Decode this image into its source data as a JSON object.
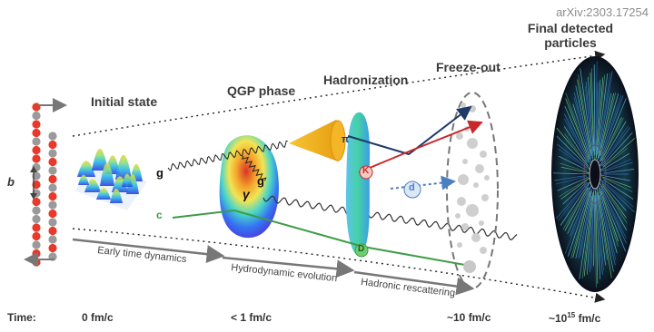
{
  "source": "arXiv:2303.17254",
  "stages": {
    "initial_state": "Initial state",
    "qgp_phase": "QGP phase",
    "hadronization": "Hadronization",
    "freeze_out": "Freeze-out",
    "final_particles": "Final detected particles",
    "final_particles_line1": "Final detected",
    "final_particles_line2": "particles"
  },
  "processes": {
    "early": "Early time dynamics",
    "hydro": "Hydrodynamic evolution",
    "rescattering": "Hadronic rescattering"
  },
  "impact_parameter": "b",
  "particles": {
    "gluon": "g",
    "gluon_inner": "g",
    "photon": "γ",
    "charm": "c",
    "pion": "π",
    "kaon": "K",
    "deuteron": "d",
    "dmeson": "D"
  },
  "timeline": {
    "label": "Time:",
    "t0": "0 fm/c",
    "t1": "< 1 fm/c",
    "t2": "~10 fm/c",
    "t3_base": "~10",
    "t3_exp": "15",
    "t3_unit": " fm/c"
  },
  "colors": {
    "nucleon_red": "#e8392b",
    "nucleon_grey": "#9a9a9a",
    "arrow_blue": "#1f3a68",
    "kaon_red": "#c8282a",
    "deuteron_blue": "#4a7fc1",
    "charm_green": "#3c9c47",
    "cone_yellow": "#f3b21a"
  }
}
